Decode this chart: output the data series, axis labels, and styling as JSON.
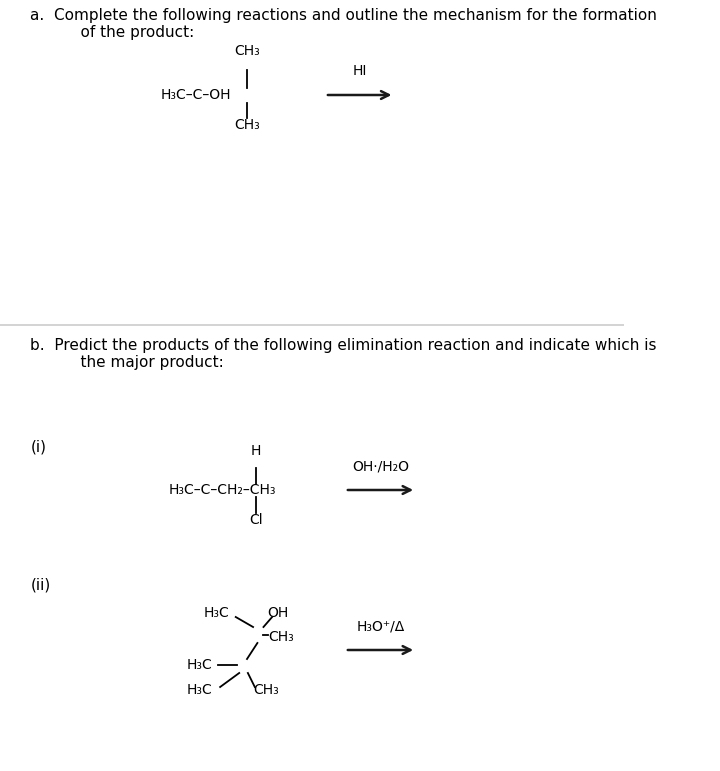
{
  "bg_color": "#ffffff",
  "text_color": "#000000",
  "fig_width": 7.2,
  "fig_height": 7.71,
  "dpi": 100,
  "header_a_line1": "a.  Complete the following reactions and outline the mechanism for the formation",
  "header_a_line2": "    of the product:",
  "header_b_line1": "b.  Predict the products of the following elimination reaction and indicate which is",
  "header_b_line2": "    the major product:",
  "label_i": "(i)",
  "label_ii": "(ii)",
  "divider_color": "#cccccc",
  "arrow_color": "#1a1a1a",
  "text_fs": 11,
  "chem_fs": 10
}
